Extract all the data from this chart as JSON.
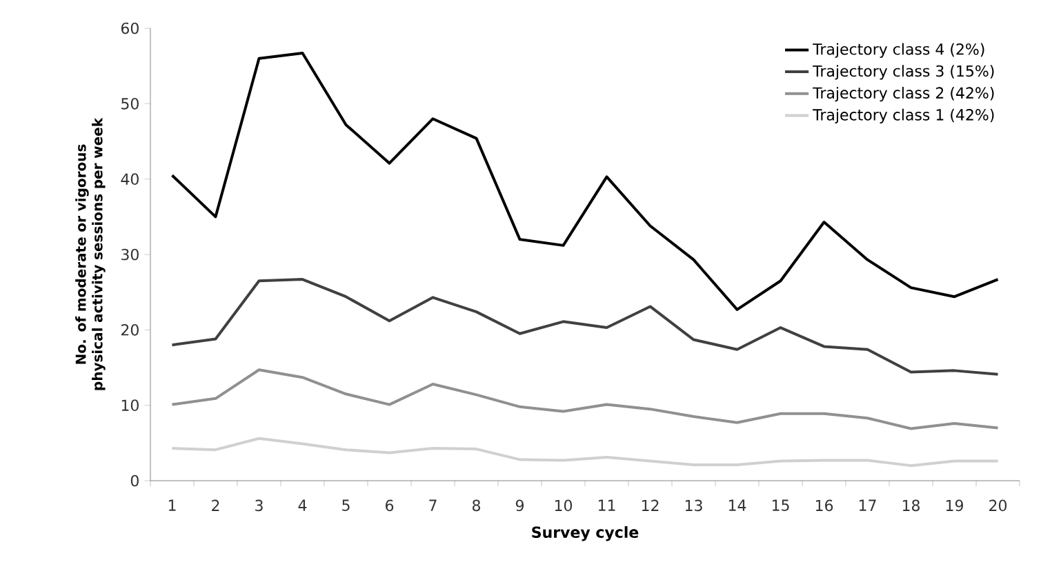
{
  "chart_data": {
    "type": "line",
    "xlabel": "Survey cycle",
    "ylabel": "No. of moderate or vigorous physical activity sessions per week",
    "categories": [
      "1",
      "2",
      "3",
      "4",
      "5",
      "6",
      "7",
      "8",
      "9",
      "10",
      "11",
      "12",
      "13",
      "14",
      "15",
      "16",
      "17",
      "18",
      "19",
      "20"
    ],
    "series": [
      {
        "name": "Trajectory class 4 (2%)",
        "color": "#000000",
        "values": [
          40.5,
          35.0,
          56.0,
          56.7,
          47.2,
          42.1,
          48.0,
          45.4,
          32.0,
          31.2,
          40.3,
          33.8,
          29.3,
          22.7,
          26.5,
          34.3,
          29.3,
          25.6,
          24.4,
          26.7
        ]
      },
      {
        "name": "Trajectory class 3 (15%)",
        "color": "#404040",
        "values": [
          18.0,
          18.8,
          26.5,
          26.7,
          24.4,
          21.2,
          24.3,
          22.4,
          19.5,
          21.1,
          20.3,
          23.1,
          18.7,
          17.4,
          20.3,
          17.8,
          17.4,
          14.4,
          14.6,
          14.1
        ]
      },
      {
        "name": "Trajectory class 2 (42%)",
        "color": "#909090",
        "values": [
          10.1,
          10.9,
          14.7,
          13.7,
          11.5,
          10.1,
          12.8,
          11.4,
          9.8,
          9.2,
          10.1,
          9.5,
          8.5,
          7.7,
          8.9,
          8.9,
          8.3,
          6.9,
          7.6,
          7.0
        ]
      },
      {
        "name": "Trajectory class 1 (42%)",
        "color": "#d0d0d0",
        "values": [
          4.3,
          4.1,
          5.6,
          4.9,
          4.1,
          3.7,
          4.3,
          4.2,
          2.8,
          2.7,
          3.1,
          2.6,
          2.1,
          2.1,
          2.6,
          2.7,
          2.7,
          2.0,
          2.6,
          2.6
        ]
      }
    ],
    "ylim": [
      0,
      60
    ],
    "yticks": [
      0,
      10,
      20,
      30,
      40,
      50,
      60
    ],
    "grid": false,
    "legend": "top right",
    "marker": "none",
    "line_style": "solid"
  }
}
